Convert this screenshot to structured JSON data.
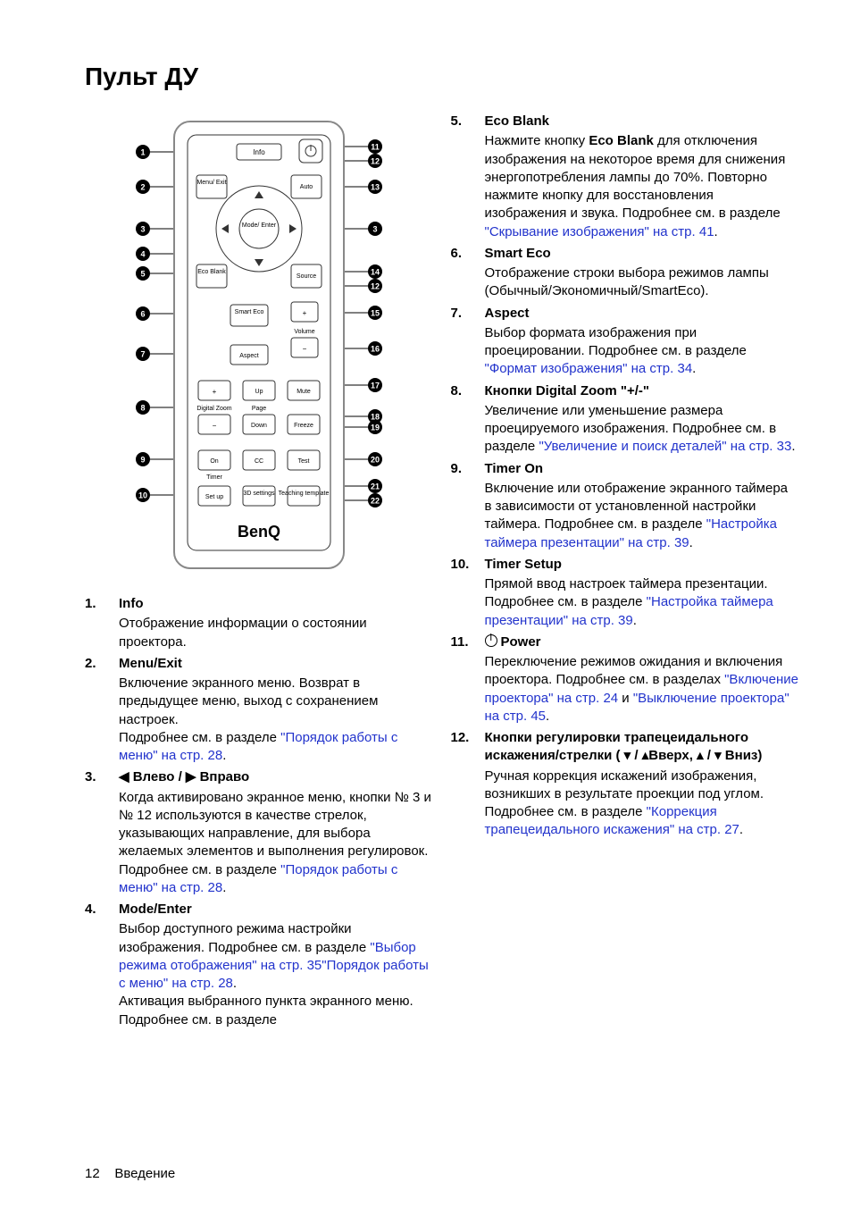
{
  "page": {
    "title": "Пульт ДУ",
    "footer_num": "12",
    "footer_text": "Введение"
  },
  "colors": {
    "link": "#2233cc",
    "text": "#000000",
    "bg": "#ffffff"
  },
  "remote": {
    "brand": "BenQ",
    "left_callouts": [
      "1",
      "2",
      "3",
      "4",
      "5",
      "6",
      "7",
      "8",
      "9",
      "10"
    ],
    "right_callouts": [
      "11",
      "12",
      "13",
      "3",
      "14",
      "12",
      "15",
      "16",
      "17",
      "18",
      "19",
      "20",
      "21",
      "22"
    ],
    "buttons": {
      "info": "Info",
      "menu_exit": "Menu/\nExit",
      "auto": "Auto",
      "mode_enter": "Mode/\nEnter",
      "eco_blank": "Eco\nBlank",
      "source": "Source",
      "smart_eco": "Smart\nEco",
      "volume": "Volume",
      "plus": "+",
      "minus": "−",
      "aspect": "Aspect",
      "dz_plus": "+",
      "dz_minus": "−",
      "digital_zoom": "Digital Zoom",
      "up": "Up",
      "down": "Down",
      "page": "Page",
      "mute": "Mute",
      "freeze": "Freeze",
      "on": "On",
      "cc": "CC",
      "test": "Test",
      "timer": "Timer",
      "setup": "Set up",
      "threeD": "3D\nsettings",
      "teach": "Teaching\ntemplate"
    }
  },
  "left": [
    {
      "n": "1.",
      "name": "Info",
      "desc": "Отображение информации о состоянии проектора."
    },
    {
      "n": "2.",
      "name": "Menu/Exit",
      "desc": "Включение экранного меню. Возврат в предыдущее меню, выход с сохранением настроек.\nПодробнее см. в разделе ",
      "link": "\"Порядок работы с меню\" на стр. 28",
      "post": "."
    },
    {
      "n": "3.",
      "name": "◀ Влево / ▶ Вправо",
      "desc": "Когда активировано экранное меню, кнопки № 3 и № 12 используются в качестве стрелок, указывающих направление, для выбора желаемых элементов и выполнения регулировок. Подробнее см. в разделе ",
      "link": "\"Порядок работы с меню\" на стр. 28",
      "post": "."
    },
    {
      "n": "4.",
      "name": "Mode/Enter",
      "desc": "Выбор доступного режима настройки изображения. Подробнее см. в разделе ",
      "link": "\"Выбор режима отображения\" на стр. 35",
      "post": ".\nАктивация выбранного пункта экранного меню. Подробнее см. в разделе ",
      "link2": "\"Порядок работы с меню\" на стр. 28",
      "post2": "."
    }
  ],
  "right": [
    {
      "n": "5.",
      "name": "Eco Blank",
      "desc": "Нажмите кнопку ",
      "bold": "Eco Blank",
      "desc2": " для отключения изображения на некоторое время для снижения энергопотребления лампы до 70%. Повторно нажмите кнопку для восстановления изображения и звука. Подробнее см. в разделе ",
      "link": "\"Скрывание изображения\" на стр. 41",
      "post": "."
    },
    {
      "n": "6.",
      "name": "Smart Eco",
      "desc": "Отображение строки выбора режимов лампы (Обычный/Экономичный/SmartEco)."
    },
    {
      "n": "7.",
      "name": "Aspect",
      "desc": "Выбор формата изображения при проецировании. Подробнее см. в разделе ",
      "link": "\"Формат изображения\" на стр. 34",
      "post": "."
    },
    {
      "n": "8.",
      "name": "Кнопки Digital Zoom \"+/-\"",
      "desc": "Увеличение или уменьшение размера проецируемого изображения. Подробнее см. в разделе ",
      "link": "\"Увеличение и поиск деталей\" на стр. 33",
      "post": "."
    },
    {
      "n": "9.",
      "name": "Timer On",
      "desc": "Включение или отображение экранного таймера в зависимости от установленной настройки таймера. Подробнее см. в разделе ",
      "link": "\"Настройка таймера презентации\" на стр. 39",
      "post": "."
    },
    {
      "n": "10.",
      "name": "Timer Setup",
      "desc": "Прямой ввод настроек таймера презентации. Подробнее см. в разделе ",
      "link": "\"Настройка таймера презентации\" на стр. 39",
      "post": "."
    },
    {
      "n": "11.",
      "name": "Power",
      "icon": "power",
      "desc": "Переключение режимов ожидания и включения проектора. Подробнее см. в разделах ",
      "link": "\"Включение проектора\" на стр. 24",
      "mid": " и ",
      "link2": "\"Выключение проектора\" на стр. 45",
      "post": "."
    },
    {
      "n": "12.",
      "name": "Кнопки регулировки трапецеидального искажения/стрелки ( ▾ / ▴Вверх,  ▴ / ▾ Вниз)",
      "desc": "Ручная коррекция искажений изображения, возникших в результате проекции под углом. Подробнее см. в разделе ",
      "link": "\"Коррекция трапецеидального искажения\" на стр. 27",
      "post": "."
    }
  ]
}
